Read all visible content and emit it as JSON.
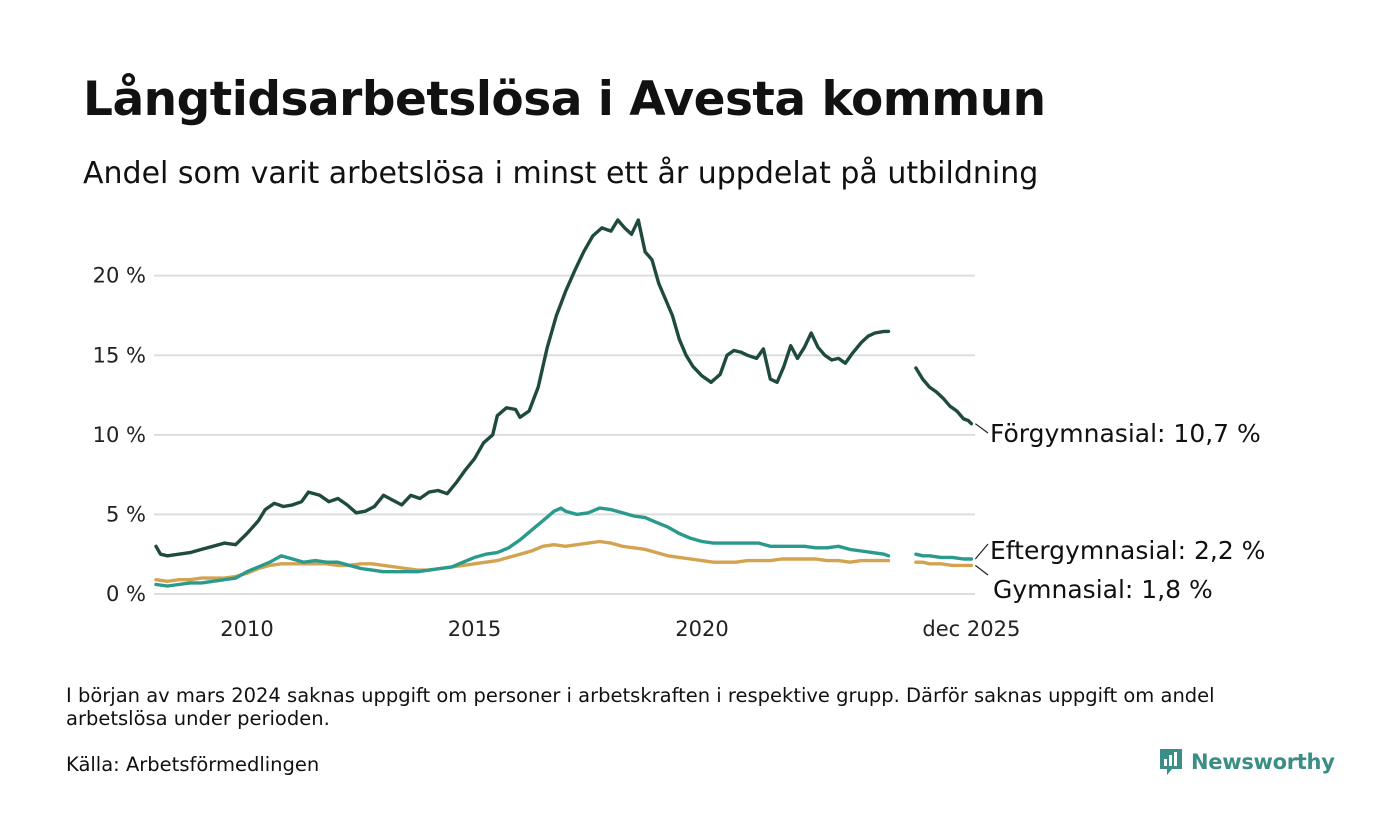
{
  "title": "Långtidsarbetslösa i Avesta kommun",
  "subtitle": "Andel som varit arbetslösa i minst ett år uppdelat på utbildning",
  "footnote": "I början av mars 2024 saknas uppgift om personer i arbetskraften i respektive grupp. Därför saknas uppgift om andel arbetslösa under perioden.",
  "source": "Källa: Arbetsförmedlingen",
  "brand": {
    "name": "Newsworthy",
    "icon": "newsworthy-logo-icon",
    "color": "#3a8e86"
  },
  "chart_data": {
    "type": "line",
    "title": "Långtidsarbetslösa i Avesta kommun",
    "xlabel": "",
    "ylabel": "",
    "x_range": [
      2008.0,
      2026.0
    ],
    "ylim": [
      0,
      24
    ],
    "grid": true,
    "y_ticks": [
      {
        "value": 0,
        "label": "0 %"
      },
      {
        "value": 5,
        "label": "5 %"
      },
      {
        "value": 10,
        "label": "10 %"
      },
      {
        "value": 15,
        "label": "15 %"
      },
      {
        "value": 20,
        "label": "20 %"
      }
    ],
    "x_ticks": [
      {
        "value": 2010,
        "label": "2010"
      },
      {
        "value": 2015,
        "label": "2015"
      },
      {
        "value": 2020,
        "label": "2020"
      },
      {
        "value": 2025.92,
        "label": "dec 2025"
      }
    ],
    "gap": [
      2023.7,
      2024.1
    ],
    "series": [
      {
        "name": "Förgymnasial",
        "label": "Förgymnasial: 10,7 %",
        "color": "#1f4a40",
        "points": [
          [
            2008.0,
            3.0
          ],
          [
            2008.1,
            2.5
          ],
          [
            2008.25,
            2.4
          ],
          [
            2008.5,
            2.5
          ],
          [
            2008.75,
            2.6
          ],
          [
            2009.0,
            2.8
          ],
          [
            2009.25,
            3.0
          ],
          [
            2009.5,
            3.2
          ],
          [
            2009.75,
            3.1
          ],
          [
            2010.0,
            3.8
          ],
          [
            2010.25,
            4.6
          ],
          [
            2010.4,
            5.3
          ],
          [
            2010.6,
            5.7
          ],
          [
            2010.8,
            5.5
          ],
          [
            2011.0,
            5.6
          ],
          [
            2011.2,
            5.8
          ],
          [
            2011.35,
            6.4
          ],
          [
            2011.6,
            6.2
          ],
          [
            2011.8,
            5.8
          ],
          [
            2012.0,
            6.0
          ],
          [
            2012.2,
            5.6
          ],
          [
            2012.4,
            5.1
          ],
          [
            2012.6,
            5.2
          ],
          [
            2012.8,
            5.5
          ],
          [
            2013.0,
            6.2
          ],
          [
            2013.2,
            5.9
          ],
          [
            2013.4,
            5.6
          ],
          [
            2013.6,
            6.2
          ],
          [
            2013.8,
            6.0
          ],
          [
            2014.0,
            6.4
          ],
          [
            2014.2,
            6.5
          ],
          [
            2014.4,
            6.3
          ],
          [
            2014.6,
            7.0
          ],
          [
            2014.8,
            7.8
          ],
          [
            2015.0,
            8.5
          ],
          [
            2015.2,
            9.5
          ],
          [
            2015.4,
            10.0
          ],
          [
            2015.5,
            11.2
          ],
          [
            2015.7,
            11.7
          ],
          [
            2015.9,
            11.6
          ],
          [
            2016.0,
            11.1
          ],
          [
            2016.2,
            11.5
          ],
          [
            2016.4,
            13.0
          ],
          [
            2016.6,
            15.5
          ],
          [
            2016.8,
            17.5
          ],
          [
            2017.0,
            19.0
          ],
          [
            2017.2,
            20.3
          ],
          [
            2017.4,
            21.5
          ],
          [
            2017.6,
            22.5
          ],
          [
            2017.8,
            23.0
          ],
          [
            2018.0,
            22.8
          ],
          [
            2018.15,
            23.5
          ],
          [
            2018.3,
            23.0
          ],
          [
            2018.45,
            22.6
          ],
          [
            2018.6,
            23.5
          ],
          [
            2018.75,
            21.5
          ],
          [
            2018.9,
            21.0
          ],
          [
            2019.05,
            19.5
          ],
          [
            2019.2,
            18.5
          ],
          [
            2019.35,
            17.5
          ],
          [
            2019.5,
            16.0
          ],
          [
            2019.65,
            15.0
          ],
          [
            2019.8,
            14.3
          ],
          [
            2020.0,
            13.7
          ],
          [
            2020.2,
            13.3
          ],
          [
            2020.4,
            13.8
          ],
          [
            2020.55,
            15.0
          ],
          [
            2020.7,
            15.3
          ],
          [
            2020.85,
            15.2
          ],
          [
            2021.0,
            15.0
          ],
          [
            2021.2,
            14.8
          ],
          [
            2021.35,
            15.4
          ],
          [
            2021.5,
            13.5
          ],
          [
            2021.65,
            13.3
          ],
          [
            2021.8,
            14.3
          ],
          [
            2021.95,
            15.6
          ],
          [
            2022.1,
            14.8
          ],
          [
            2022.25,
            15.5
          ],
          [
            2022.4,
            16.4
          ],
          [
            2022.55,
            15.5
          ],
          [
            2022.7,
            15.0
          ],
          [
            2022.85,
            14.7
          ],
          [
            2023.0,
            14.8
          ],
          [
            2023.15,
            14.5
          ],
          [
            2023.3,
            15.1
          ],
          [
            2023.5,
            15.8
          ],
          [
            2023.65,
            16.2
          ],
          [
            2023.8,
            16.4
          ],
          [
            2024.0,
            16.5
          ],
          [
            2024.1,
            16.5
          ],
          null,
          [
            2024.7,
            14.2
          ],
          [
            2024.85,
            13.5
          ],
          [
            2025.0,
            13.0
          ],
          [
            2025.15,
            12.7
          ],
          [
            2025.3,
            12.3
          ],
          [
            2025.45,
            11.8
          ],
          [
            2025.6,
            11.5
          ],
          [
            2025.75,
            11.0
          ],
          [
            2025.85,
            10.9
          ],
          [
            2025.92,
            10.7
          ]
        ]
      },
      {
        "name": "Eftergymnasial",
        "label": "Eftergymnasial:  2,2 %",
        "color": "#2a9a8c",
        "points": [
          [
            2008.0,
            0.6
          ],
          [
            2008.25,
            0.5
          ],
          [
            2008.5,
            0.6
          ],
          [
            2008.75,
            0.7
          ],
          [
            2009.0,
            0.7
          ],
          [
            2009.25,
            0.8
          ],
          [
            2009.5,
            0.9
          ],
          [
            2009.75,
            1.0
          ],
          [
            2010.0,
            1.4
          ],
          [
            2010.25,
            1.7
          ],
          [
            2010.5,
            2.0
          ],
          [
            2010.75,
            2.4
          ],
          [
            2011.0,
            2.2
          ],
          [
            2011.25,
            2.0
          ],
          [
            2011.5,
            2.1
          ],
          [
            2011.75,
            2.0
          ],
          [
            2012.0,
            2.0
          ],
          [
            2012.25,
            1.8
          ],
          [
            2012.5,
            1.6
          ],
          [
            2012.75,
            1.5
          ],
          [
            2013.0,
            1.4
          ],
          [
            2013.25,
            1.4
          ],
          [
            2013.5,
            1.4
          ],
          [
            2013.75,
            1.4
          ],
          [
            2014.0,
            1.5
          ],
          [
            2014.25,
            1.6
          ],
          [
            2014.5,
            1.7
          ],
          [
            2014.75,
            2.0
          ],
          [
            2015.0,
            2.3
          ],
          [
            2015.25,
            2.5
          ],
          [
            2015.5,
            2.6
          ],
          [
            2015.75,
            2.9
          ],
          [
            2016.0,
            3.4
          ],
          [
            2016.25,
            4.0
          ],
          [
            2016.5,
            4.6
          ],
          [
            2016.75,
            5.2
          ],
          [
            2016.9,
            5.4
          ],
          [
            2017.0,
            5.2
          ],
          [
            2017.25,
            5.0
          ],
          [
            2017.5,
            5.1
          ],
          [
            2017.75,
            5.4
          ],
          [
            2018.0,
            5.3
          ],
          [
            2018.25,
            5.1
          ],
          [
            2018.5,
            4.9
          ],
          [
            2018.75,
            4.8
          ],
          [
            2019.0,
            4.5
          ],
          [
            2019.25,
            4.2
          ],
          [
            2019.5,
            3.8
          ],
          [
            2019.75,
            3.5
          ],
          [
            2020.0,
            3.3
          ],
          [
            2020.25,
            3.2
          ],
          [
            2020.5,
            3.2
          ],
          [
            2020.75,
            3.2
          ],
          [
            2021.0,
            3.2
          ],
          [
            2021.25,
            3.2
          ],
          [
            2021.5,
            3.0
          ],
          [
            2021.75,
            3.0
          ],
          [
            2022.0,
            3.0
          ],
          [
            2022.25,
            3.0
          ],
          [
            2022.5,
            2.9
          ],
          [
            2022.75,
            2.9
          ],
          [
            2023.0,
            3.0
          ],
          [
            2023.25,
            2.8
          ],
          [
            2023.5,
            2.7
          ],
          [
            2023.75,
            2.6
          ],
          [
            2024.0,
            2.5
          ],
          [
            2024.1,
            2.4
          ],
          null,
          [
            2024.7,
            2.5
          ],
          [
            2024.85,
            2.4
          ],
          [
            2025.0,
            2.4
          ],
          [
            2025.25,
            2.3
          ],
          [
            2025.5,
            2.3
          ],
          [
            2025.75,
            2.2
          ],
          [
            2025.92,
            2.2
          ]
        ]
      },
      {
        "name": "Gymnasial",
        "label": "Gymnasial:  1,8 %",
        "color": "#d4a352",
        "points": [
          [
            2008.0,
            0.9
          ],
          [
            2008.25,
            0.8
          ],
          [
            2008.5,
            0.9
          ],
          [
            2008.75,
            0.9
          ],
          [
            2009.0,
            1.0
          ],
          [
            2009.25,
            1.0
          ],
          [
            2009.5,
            1.0
          ],
          [
            2009.75,
            1.1
          ],
          [
            2010.0,
            1.3
          ],
          [
            2010.25,
            1.6
          ],
          [
            2010.5,
            1.8
          ],
          [
            2010.75,
            1.9
          ],
          [
            2011.0,
            1.9
          ],
          [
            2011.25,
            1.9
          ],
          [
            2011.5,
            1.9
          ],
          [
            2011.75,
            1.9
          ],
          [
            2012.0,
            1.8
          ],
          [
            2012.25,
            1.8
          ],
          [
            2012.5,
            1.9
          ],
          [
            2012.75,
            1.9
          ],
          [
            2013.0,
            1.8
          ],
          [
            2013.25,
            1.7
          ],
          [
            2013.5,
            1.6
          ],
          [
            2013.75,
            1.5
          ],
          [
            2014.0,
            1.5
          ],
          [
            2014.25,
            1.6
          ],
          [
            2014.5,
            1.7
          ],
          [
            2014.75,
            1.8
          ],
          [
            2015.0,
            1.9
          ],
          [
            2015.25,
            2.0
          ],
          [
            2015.5,
            2.1
          ],
          [
            2015.75,
            2.3
          ],
          [
            2016.0,
            2.5
          ],
          [
            2016.25,
            2.7
          ],
          [
            2016.5,
            3.0
          ],
          [
            2016.75,
            3.1
          ],
          [
            2017.0,
            3.0
          ],
          [
            2017.25,
            3.1
          ],
          [
            2017.5,
            3.2
          ],
          [
            2017.75,
            3.3
          ],
          [
            2018.0,
            3.2
          ],
          [
            2018.25,
            3.0
          ],
          [
            2018.5,
            2.9
          ],
          [
            2018.75,
            2.8
          ],
          [
            2019.0,
            2.6
          ],
          [
            2019.25,
            2.4
          ],
          [
            2019.5,
            2.3
          ],
          [
            2019.75,
            2.2
          ],
          [
            2020.0,
            2.1
          ],
          [
            2020.25,
            2.0
          ],
          [
            2020.5,
            2.0
          ],
          [
            2020.75,
            2.0
          ],
          [
            2021.0,
            2.1
          ],
          [
            2021.25,
            2.1
          ],
          [
            2021.5,
            2.1
          ],
          [
            2021.75,
            2.2
          ],
          [
            2022.0,
            2.2
          ],
          [
            2022.25,
            2.2
          ],
          [
            2022.5,
            2.2
          ],
          [
            2022.75,
            2.1
          ],
          [
            2023.0,
            2.1
          ],
          [
            2023.25,
            2.0
          ],
          [
            2023.5,
            2.1
          ],
          [
            2023.75,
            2.1
          ],
          [
            2024.0,
            2.1
          ],
          [
            2024.1,
            2.1
          ],
          null,
          [
            2024.7,
            2.0
          ],
          [
            2024.85,
            2.0
          ],
          [
            2025.0,
            1.9
          ],
          [
            2025.25,
            1.9
          ],
          [
            2025.5,
            1.8
          ],
          [
            2025.75,
            1.8
          ],
          [
            2025.92,
            1.8
          ]
        ]
      }
    ]
  }
}
